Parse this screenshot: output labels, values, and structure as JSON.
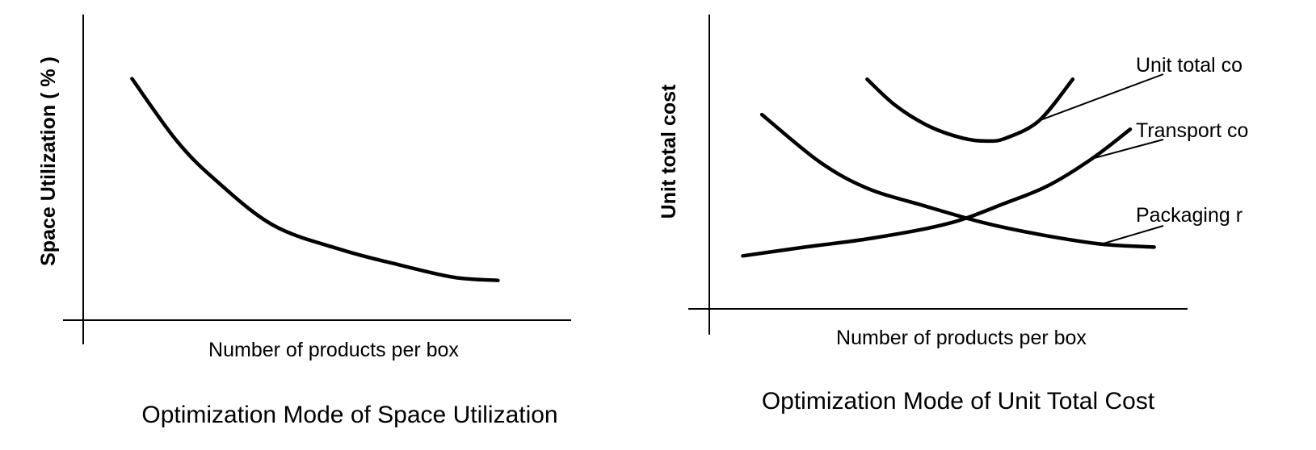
{
  "chart_data": [
    {
      "type": "line",
      "caption": "Optimization Mode of Space Utilization",
      "xlabel": "Number of products per box",
      "ylabel": "Space Utilization ( % )",
      "x_ticks_shown": false,
      "y_ticks_shown": false,
      "grid": false,
      "xlim": [
        0,
        10
      ],
      "ylim": [
        0,
        10
      ],
      "series": [
        {
          "x": [
            1.0,
            1.9,
            2.7,
            3.9,
            5.3,
            6.5,
            7.6,
            8.5
          ],
          "y": [
            7.9,
            5.9,
            4.6,
            3.1,
            2.3,
            1.8,
            1.4,
            1.3
          ]
        }
      ]
    },
    {
      "type": "line",
      "caption": "Optimization Mode of Unit Total Cost",
      "xlabel": "Number of products per box",
      "ylabel": "Unit total cost",
      "x_ticks_shown": false,
      "y_ticks_shown": false,
      "grid": false,
      "xlim": [
        0,
        10
      ],
      "ylim": [
        0,
        10
      ],
      "legend_position": "right",
      "series": [
        {
          "name": "Unit total co",
          "x": [
            3.3,
            3.9,
            4.6,
            5.3,
            5.8,
            6.2,
            6.9,
            7.6
          ],
          "y": [
            7.8,
            6.9,
            6.2,
            5.8,
            5.7,
            5.8,
            6.4,
            7.8
          ]
        },
        {
          "name": "Transport co",
          "x": [
            0.7,
            2.0,
            3.4,
            5.0,
            6.2,
            7.1,
            8.0,
            8.8
          ],
          "y": [
            1.8,
            2.1,
            2.4,
            2.9,
            3.6,
            4.2,
            5.1,
            6.1
          ]
        },
        {
          "name": "Packaging r",
          "x": [
            1.1,
            2.3,
            3.3,
            4.5,
            5.8,
            7.0,
            8.2,
            9.3
          ],
          "y": [
            6.6,
            5.0,
            4.1,
            3.5,
            2.9,
            2.5,
            2.2,
            2.1
          ]
        }
      ]
    }
  ]
}
